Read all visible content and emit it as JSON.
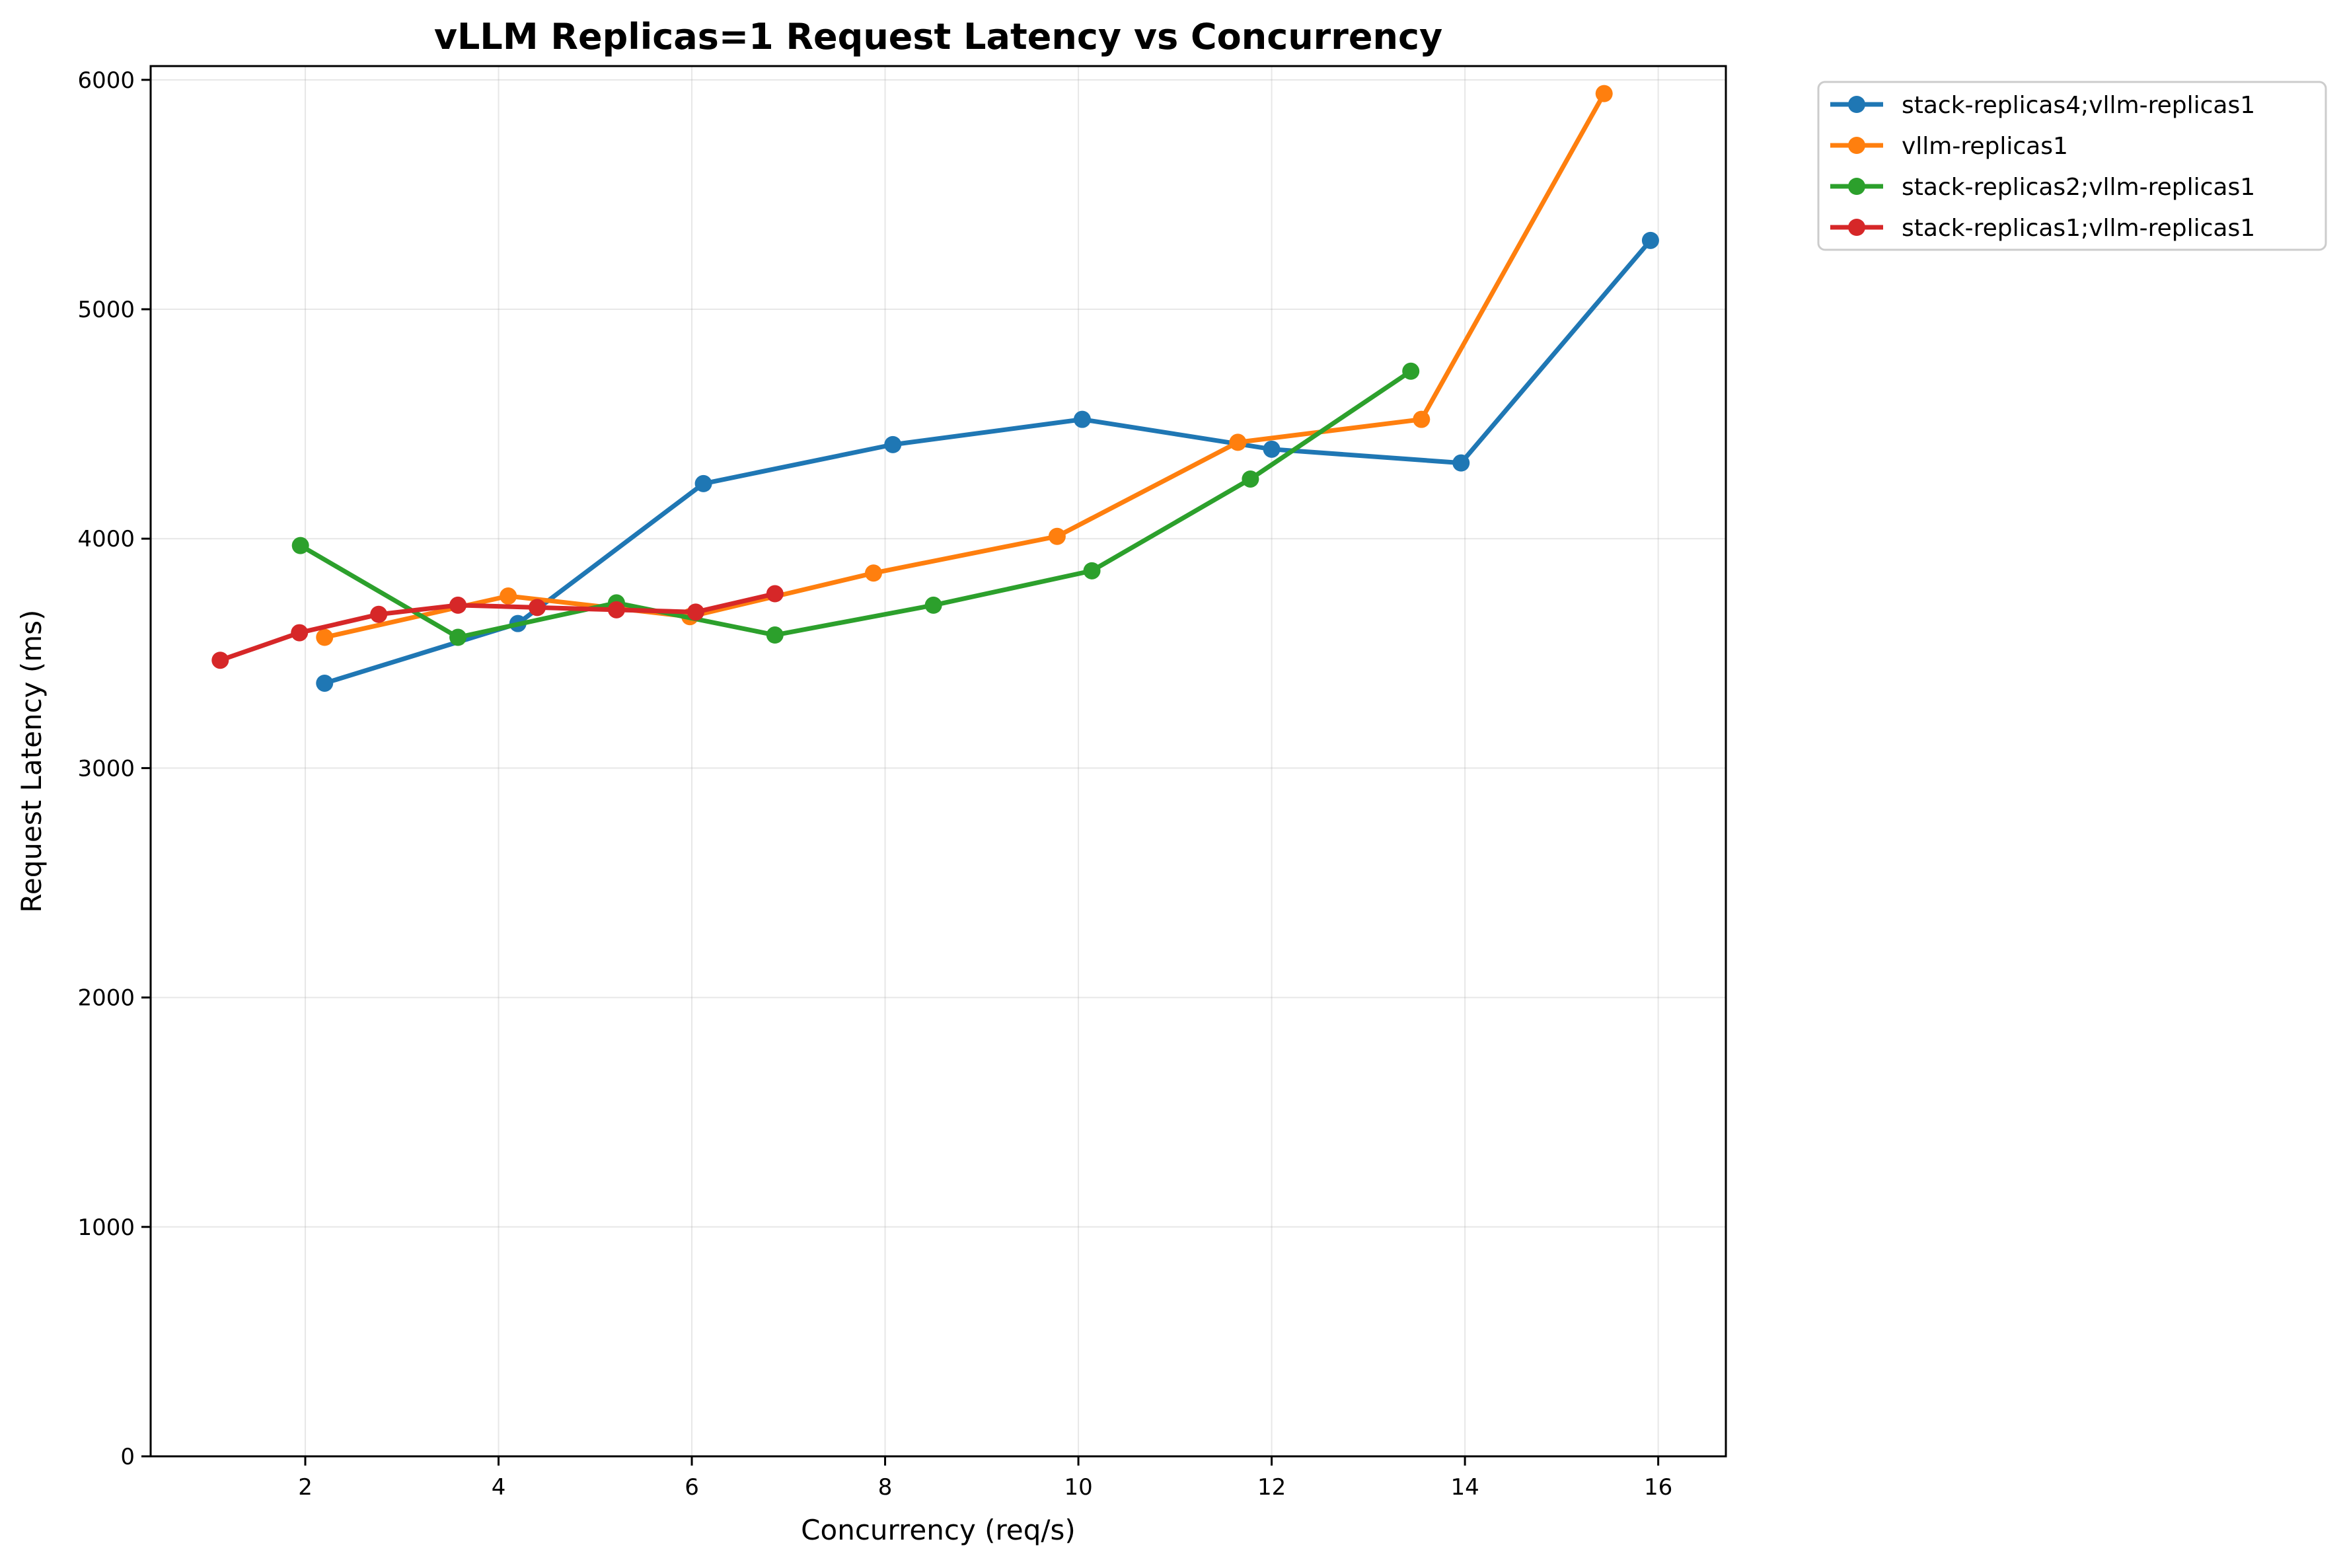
{
  "chart_data": {
    "type": "line",
    "title": "vLLM Replicas=1 Request Latency vs Concurrency",
    "xlabel": "Concurrency (req/s)",
    "ylabel": "Request Latency (ms)",
    "xlim": [
      0.4,
      16.7
    ],
    "ylim": [
      0,
      6060
    ],
    "xticks": [
      2,
      4,
      6,
      8,
      10,
      12,
      14,
      16
    ],
    "yticks": [
      0,
      1000,
      2000,
      3000,
      4000,
      5000,
      6000
    ],
    "grid": true,
    "legend_position": "outside-top-right",
    "series": [
      {
        "name": "stack-replicas4;vllm-replicas1",
        "color": "#1f77b4",
        "x": [
          2.2,
          4.2,
          6.12,
          8.08,
          10.04,
          12.0,
          13.96,
          15.92
        ],
        "y": [
          3370,
          3630,
          4240,
          4410,
          4520,
          4390,
          4330,
          5300
        ]
      },
      {
        "name": "vllm-replicas1",
        "color": "#ff7f0e",
        "x": [
          2.2,
          4.1,
          5.98,
          7.88,
          9.78,
          11.65,
          13.55,
          15.44
        ],
        "y": [
          3570,
          3750,
          3660,
          3850,
          4010,
          4420,
          4520,
          5940
        ]
      },
      {
        "name": "stack-replicas2;vllm-replicas1",
        "color": "#2ca02c",
        "x": [
          1.95,
          3.58,
          5.22,
          6.86,
          8.5,
          10.14,
          11.78,
          13.44
        ],
        "y": [
          3970,
          3570,
          3720,
          3580,
          3710,
          3860,
          4260,
          4730
        ]
      },
      {
        "name": "stack-replicas1;vllm-replicas1",
        "color": "#d62728",
        "x": [
          1.12,
          1.94,
          2.76,
          3.58,
          4.4,
          5.22,
          6.04,
          6.86
        ],
        "y": [
          3470,
          3590,
          3670,
          3710,
          3700,
          3690,
          3680,
          3760
        ]
      }
    ]
  }
}
